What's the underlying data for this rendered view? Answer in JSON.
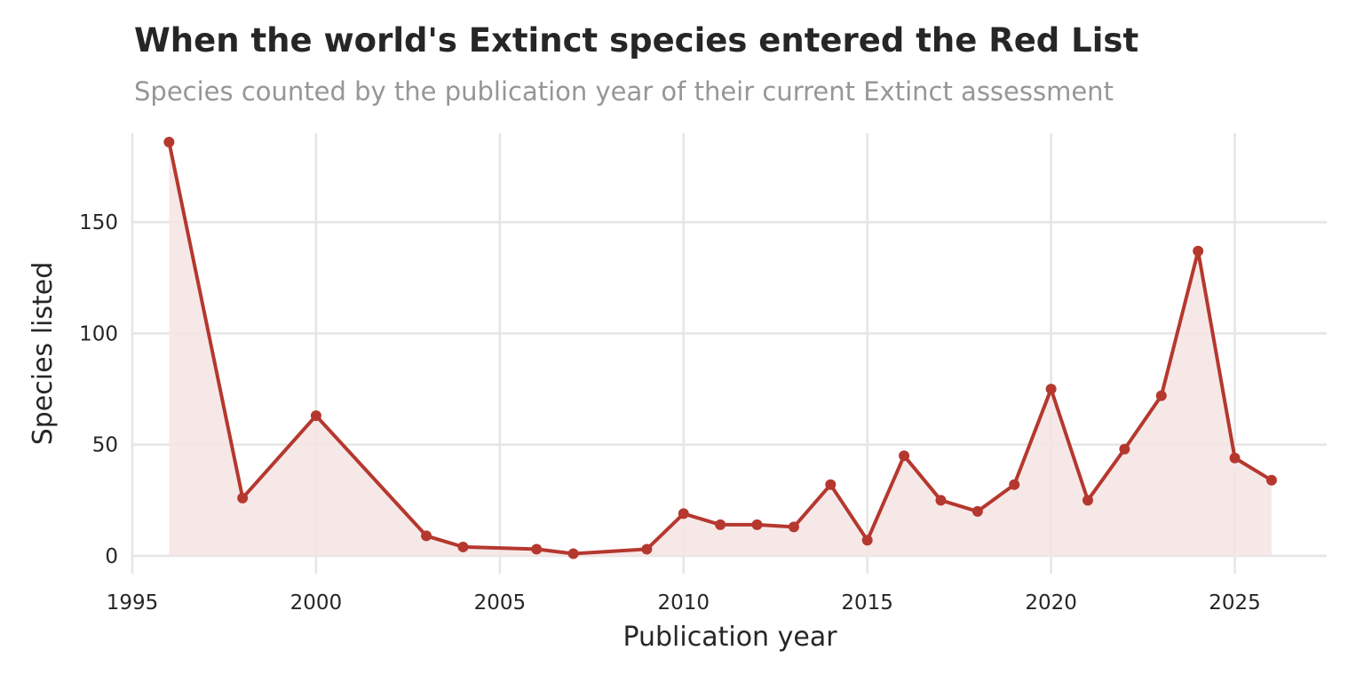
{
  "chart_data": {
    "type": "line",
    "title": "When the world's Extinct species entered the Red List",
    "subtitle": "Species counted by the publication year of their current Extinct assessment",
    "xlabel": "Publication year",
    "ylabel": "Species listed",
    "xlim": [
      1995,
      2027.5
    ],
    "ylim": [
      -8,
      190
    ],
    "x_ticks": [
      1995,
      2000,
      2005,
      2010,
      2015,
      2020,
      2025
    ],
    "y_ticks": [
      0,
      50,
      100,
      150
    ],
    "grid": true,
    "legend": "none",
    "area_fill": true,
    "colors": {
      "line": "#b5382e",
      "fill": "#f6e4e4",
      "grid": "#e6e6e6",
      "text": "#262626"
    },
    "series": [
      {
        "x": [
          1996,
          1998,
          2000,
          2003,
          2004,
          2006,
          2007,
          2009,
          2010,
          2011,
          2012,
          2013,
          2014,
          2015,
          2016,
          2017,
          2018,
          2019,
          2020,
          2021,
          2022,
          2023,
          2024,
          2025,
          2026
        ],
        "values": [
          186,
          26,
          63,
          9,
          4,
          3,
          1,
          3,
          19,
          14,
          14,
          13,
          32,
          7,
          45,
          25,
          20,
          32,
          75,
          25,
          48,
          72,
          137,
          44,
          34
        ]
      }
    ]
  }
}
